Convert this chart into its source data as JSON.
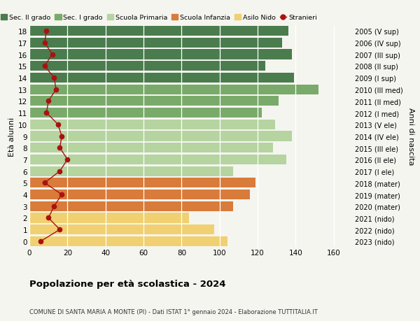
{
  "ages": [
    18,
    17,
    16,
    15,
    14,
    13,
    12,
    11,
    10,
    9,
    8,
    7,
    6,
    5,
    4,
    3,
    2,
    1,
    0
  ],
  "years_labels": [
    "2005 (V sup)",
    "2006 (IV sup)",
    "2007 (III sup)",
    "2008 (II sup)",
    "2009 (I sup)",
    "2010 (III med)",
    "2011 (II med)",
    "2012 (I med)",
    "2013 (V ele)",
    "2014 (IV ele)",
    "2015 (III ele)",
    "2016 (II ele)",
    "2017 (I ele)",
    "2018 (mater)",
    "2019 (mater)",
    "2020 (mater)",
    "2021 (nido)",
    "2022 (nido)",
    "2023 (nido)"
  ],
  "bar_values": [
    136,
    133,
    138,
    124,
    139,
    152,
    131,
    122,
    129,
    138,
    128,
    135,
    107,
    119,
    116,
    107,
    84,
    97,
    104
  ],
  "bar_colors": [
    "#4a7c4e",
    "#4a7c4e",
    "#4a7c4e",
    "#4a7c4e",
    "#4a7c4e",
    "#7aaa6a",
    "#7aaa6a",
    "#7aaa6a",
    "#b5d4a0",
    "#b5d4a0",
    "#b5d4a0",
    "#b5d4a0",
    "#b5d4a0",
    "#d97b3a",
    "#d97b3a",
    "#d97b3a",
    "#f0d070",
    "#f0d070",
    "#f0d070"
  ],
  "stranieri_values": [
    9,
    8,
    12,
    8,
    13,
    14,
    10,
    9,
    15,
    17,
    16,
    20,
    16,
    8,
    17,
    13,
    10,
    16,
    6
  ],
  "stranieri_color": "#aa1111",
  "legend_labels": [
    "Sec. II grado",
    "Sec. I grado",
    "Scuola Primaria",
    "Scuola Infanzia",
    "Asilo Nido",
    "Stranieri"
  ],
  "legend_colors": [
    "#4a7c4e",
    "#7aaa6a",
    "#b5d4a0",
    "#d97b3a",
    "#f0d070",
    "#aa1111"
  ],
  "title": "Popolazione per età scolastica - 2024",
  "subtitle": "COMUNE DI SANTA MARIA A MONTE (PI) - Dati ISTAT 1° gennaio 2024 - Elaborazione TUTTITALIA.IT",
  "ylabel_left": "Età alunni",
  "ylabel_right": "Anni di nascita",
  "xlim": [
    0,
    170
  ],
  "xticks": [
    0,
    20,
    40,
    60,
    80,
    100,
    120,
    140,
    160
  ],
  "background_color": "#f5f5f0",
  "bar_height": 0.85
}
